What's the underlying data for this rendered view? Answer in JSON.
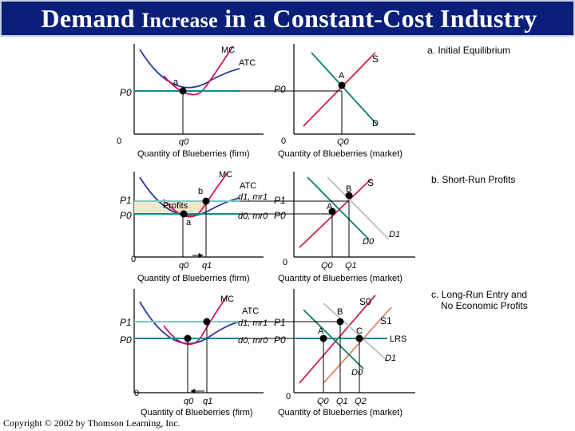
{
  "title": {
    "part1": "Demand",
    "part2": "Increase",
    "part3": "in a Constant-Cost Industry"
  },
  "copyright": "Copyright © 2002 by Thomson Learning, Inc.",
  "colors": {
    "title_bar": "#0a1f7a",
    "mc": "#d4145a",
    "atc": "#2b3a9c",
    "price_line": "#0e8c8c",
    "price_line_high": "#7fc4c8",
    "supply_s0": "#cc2244",
    "supply_s1": "#dd8866",
    "demand": "#0e7a6e",
    "demand_d1": "#bbbbcc",
    "profit_box": "#f2e6c8"
  },
  "panels": {
    "a": {
      "title": "a. Initial Equilibrium",
      "firm": {
        "mc": "MC",
        "atc": "ATC",
        "point": "a",
        "price": "P0",
        "origin": "0",
        "q0": "q0",
        "xlabel": "Quantity of Blueberries (firm)"
      },
      "market": {
        "s": "S",
        "point": "A",
        "price": "P0",
        "d": "D",
        "origin": "0",
        "q0": "Q0",
        "xlabel": "Quantity of Blueberries (market)"
      }
    },
    "b": {
      "title": "b. Short-Run Profits",
      "firm": {
        "mc": "MC",
        "atc": "ATC",
        "profits": "Profits",
        "point_b": "b",
        "point_a": "a",
        "p1": "P1",
        "p0": "P0",
        "d1_label": "d1, mr1",
        "d0_label": "d0, mr0",
        "origin": "0",
        "q0": "q0",
        "q1": "q1",
        "xlabel": "Quantity of Blueberries (firm)"
      },
      "market": {
        "s": "S",
        "point_b": "B",
        "point_a": "A",
        "p1": "P1",
        "p0": "P0",
        "d0": "D0",
        "d1": "D1",
        "origin": "0",
        "q0": "Q0",
        "q1": "Q1",
        "xlabel": "Quantity of Blueberries (market)"
      }
    },
    "c": {
      "title_line1": "c.  Long-Run Entry and",
      "title_line2": "No Economic Profits",
      "firm": {
        "mc": "MC",
        "atc": "ATC",
        "p1": "P1",
        "p0": "P0",
        "d1_label": "d1, mr1",
        "d0_label": "d0, mr0",
        "origin": "0",
        "q0": "q0",
        "q1": "q1",
        "xlabel": "Quantity of Blueberries (firm)"
      },
      "market": {
        "s0": "S0",
        "s1": "S1",
        "lrs": "LRS",
        "point_a": "A",
        "point_b": "B",
        "point_c": "C",
        "p1": "P1",
        "p0": "P0",
        "d0": "D0",
        "d1": "D1",
        "origin": "0",
        "q0": "Q0",
        "q1": "Q1",
        "q2": "Q2",
        "xlabel": "Quantity of Blueberries (market)"
      }
    }
  }
}
